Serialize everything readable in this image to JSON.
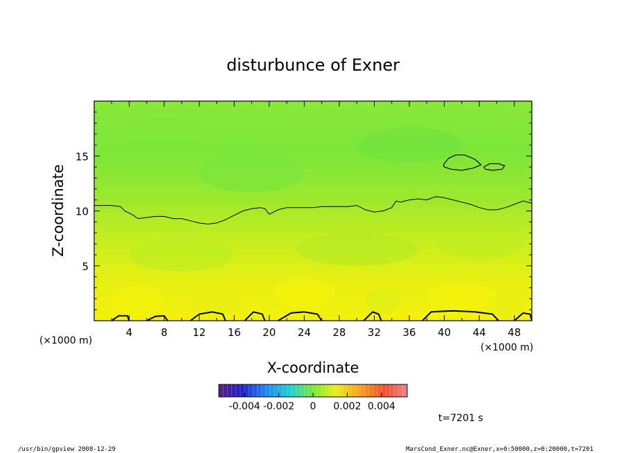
{
  "chart_data": {
    "type": "heatmap",
    "title": "disturbunce of Exner",
    "xlabel": "X-coordinate",
    "ylabel": "Z-coordinate",
    "x_unit_left": "(×1000 m)",
    "x_unit_right": "(×1000 m)",
    "xlim": [
      0,
      50
    ],
    "ylim": [
      0,
      20
    ],
    "x_ticks": [
      4,
      8,
      12,
      16,
      20,
      24,
      28,
      32,
      36,
      40,
      44,
      48
    ],
    "y_ticks": [
      5,
      10,
      15
    ],
    "colorbar": {
      "min": -0.0055,
      "max": 0.0055,
      "tick_values": [
        -0.004,
        -0.002,
        0,
        0.002,
        0.004
      ],
      "tick_labels": [
        "-0.004",
        "-0.002",
        "0",
        "0.002",
        "0.004"
      ]
    },
    "colors": {
      "upper_field": "#7be63a",
      "mid_field": "#c4ee20",
      "lower_field": "#f0f010",
      "contour": "#000000"
    },
    "contour_zero": {
      "x": [
        0,
        2,
        3,
        3.5,
        4.5,
        5,
        6,
        7,
        8,
        9,
        10,
        11,
        12,
        13,
        14,
        15,
        16,
        17,
        18,
        19,
        19.5,
        20,
        21,
        22,
        23,
        24,
        25,
        26,
        27,
        28,
        29,
        30,
        31,
        32,
        33,
        34,
        34.5,
        35,
        36,
        37,
        38,
        39,
        40,
        41,
        42,
        43,
        44,
        45,
        46,
        47,
        48,
        49,
        50
      ],
      "z": [
        10.5,
        10.5,
        10.4,
        10.0,
        9.6,
        9.3,
        9.4,
        9.5,
        9.5,
        9.3,
        9.3,
        9.1,
        8.9,
        8.8,
        8.9,
        9.2,
        9.6,
        10.0,
        10.2,
        10.3,
        10.2,
        9.7,
        10.1,
        10.3,
        10.3,
        10.3,
        10.3,
        10.4,
        10.4,
        10.4,
        10.4,
        10.5,
        10.1,
        9.9,
        10.0,
        10.3,
        10.9,
        10.8,
        11.0,
        11.1,
        11.0,
        11.3,
        11.2,
        11.0,
        10.8,
        10.6,
        10.3,
        10.1,
        10.1,
        10.3,
        10.6,
        10.9,
        10.7
      ]
    },
    "closed_contours": [
      {
        "x": [
          39.9,
          40.5,
          41.3,
          42.3,
          43.5,
          44.2,
          43.3,
          42.0,
          40.8,
          40.0,
          39.9
        ],
        "z": [
          14.2,
          14.8,
          15.1,
          15.1,
          14.7,
          14.2,
          13.9,
          13.7,
          13.8,
          14.0,
          14.2
        ]
      },
      {
        "x": [
          44.5,
          45.2,
          46.2,
          46.9,
          46.6,
          45.5,
          44.7,
          44.5
        ],
        "z": [
          14.0,
          14.3,
          14.3,
          14.1,
          13.8,
          13.7,
          13.8,
          14.0
        ]
      },
      {
        "x": [
          2.0,
          2.8,
          3.8,
          4.0
        ],
        "z": [
          0,
          0.45,
          0.45,
          0
        ]
      },
      {
        "x": [
          6.0,
          7.0,
          8.0,
          8.4
        ],
        "z": [
          0,
          0.4,
          0.45,
          0
        ]
      },
      {
        "x": [
          11.0,
          12.0,
          13.5,
          14.7,
          15.0
        ],
        "z": [
          0,
          0.6,
          0.8,
          0.6,
          0
        ]
      },
      {
        "x": [
          17.2,
          18.2,
          19.2,
          19.5
        ],
        "z": [
          0,
          0.8,
          0.6,
          0
        ]
      },
      {
        "x": [
          21.0,
          22.5,
          24.0,
          25.5,
          26.0
        ],
        "z": [
          0,
          0.7,
          0.8,
          0.6,
          0
        ]
      },
      {
        "x": [
          30.8,
          31.8,
          32.5,
          32.8
        ],
        "z": [
          0,
          0.8,
          0.6,
          0
        ]
      },
      {
        "x": [
          37.5,
          38.5,
          41.0,
          43.5,
          45.5,
          46.2
        ],
        "z": [
          0,
          0.8,
          0.9,
          0.8,
          0.6,
          0
        ]
      },
      {
        "x": [
          48.0,
          49.0,
          49.8,
          50.0
        ],
        "z": [
          0,
          0.7,
          0.6,
          0
        ]
      }
    ]
  },
  "annotations": {
    "time_label": "t=7201 s",
    "footer_left": "/usr/bin/gpview   2008-12-29",
    "footer_right": "MarsCond_Exner.nc@Exner,x=0:50000,z=0:20000,t=7201"
  }
}
